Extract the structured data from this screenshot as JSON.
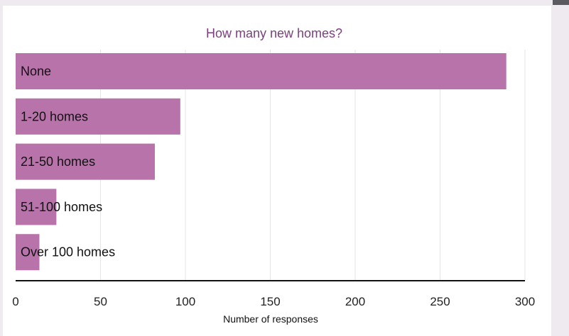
{
  "chart_data": {
    "type": "bar",
    "orientation": "horizontal",
    "title": "How many new homes?",
    "xlabel": "Number of responses",
    "ylabel": "",
    "categories": [
      "None",
      "1-20 homes",
      "21-50 homes",
      "51-100 homes",
      "Over 100 homes"
    ],
    "values": [
      289,
      97,
      82,
      24,
      14
    ],
    "xlim": [
      0,
      300
    ],
    "xticks": [
      0,
      50,
      100,
      150,
      200,
      250,
      300
    ],
    "grid": true,
    "bar_color": "#b874aa",
    "title_color": "#7b3f7f",
    "gridline_color": "#e6e6e6"
  }
}
